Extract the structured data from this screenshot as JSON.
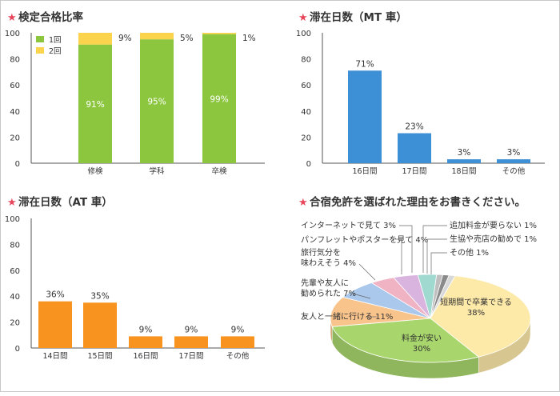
{
  "charts": [
    {
      "title": "検定合格比率",
      "type": "bar",
      "stacked": true,
      "categories": [
        "修検",
        "学科",
        "卒検"
      ],
      "series": [
        {
          "name": "1回",
          "color": "#8cc63f",
          "values": [
            91,
            95,
            99
          ],
          "labels": [
            "91%",
            "95%",
            "99%"
          ]
        },
        {
          "name": "2回",
          "color": "#fcd34d",
          "values": [
            9,
            5,
            1
          ],
          "labels": [
            "9%",
            "5%",
            "1%"
          ]
        }
      ],
      "ylim": [
        0,
        100
      ],
      "yticks": [
        "0",
        "20",
        "40",
        "60",
        "80",
        "100"
      ],
      "legend": "top-left"
    },
    {
      "title": "滞在日数（MT 車）",
      "type": "bar",
      "color": "#3d8fd6",
      "categories": [
        "16日間",
        "17日間",
        "18日間",
        "その他"
      ],
      "values": [
        71,
        23,
        3,
        3
      ],
      "labels": [
        "71%",
        "23%",
        "3%",
        "3%"
      ],
      "ylim": [
        0,
        100
      ],
      "yticks": [
        "0",
        "20",
        "40",
        "60",
        "80",
        "100"
      ]
    },
    {
      "title": "滞在日数（AT 車）",
      "type": "bar",
      "color": "#f7931e",
      "categories": [
        "14日間",
        "15日間",
        "16日間",
        "17日間",
        "その他"
      ],
      "values": [
        36,
        35,
        9,
        9,
        9
      ],
      "labels": [
        "36%",
        "35%",
        "9%",
        "9%",
        "9%"
      ],
      "ylim": [
        0,
        100
      ],
      "yticks": [
        "0",
        "20",
        "40",
        "60",
        "80",
        "100"
      ]
    },
    {
      "title": "合宿免許を選ばれた理由をお書きください。",
      "type": "pie",
      "slices": [
        {
          "label": "短期間で卒業できる",
          "value_label": "38%",
          "value": 38,
          "color": "#fde9a8"
        },
        {
          "label": "料金が安い",
          "value_label": "30%",
          "value": 30,
          "color": "#a8d66c"
        },
        {
          "label": "友人と一緒に行ける",
          "value_label": "11%",
          "value": 11,
          "color": "#f9c48c"
        },
        {
          "label": "先輩や友人に勧められた",
          "label_lines": [
            "先輩や友人に",
            "勧められた 7%"
          ],
          "value_label": "7%",
          "value": 7,
          "color": "#a9c8ec"
        },
        {
          "label": "旅行気分を味わえそう",
          "label_lines": [
            "旅行気分を",
            "味わえそう 4%"
          ],
          "value_label": "4%",
          "value": 4,
          "color": "#f0b3c3"
        },
        {
          "label": "パンフレットやポスターを見て",
          "value_label": "4%",
          "value": 4,
          "color": "#d9b4de"
        },
        {
          "label": "インターネットで見て",
          "value_label": "3%",
          "value": 3,
          "color": "#9fd9d0"
        },
        {
          "label": "追加料金が要らない",
          "value_label": "1%",
          "value": 1,
          "color": "#bfbfbf"
        },
        {
          "label": "生協や売店の勧めで",
          "value_label": "1%",
          "value": 1,
          "color": "#8a8a8a"
        },
        {
          "label": "その他",
          "value_label": "1%",
          "value": 1,
          "color": "#d8d8d8"
        }
      ]
    }
  ]
}
